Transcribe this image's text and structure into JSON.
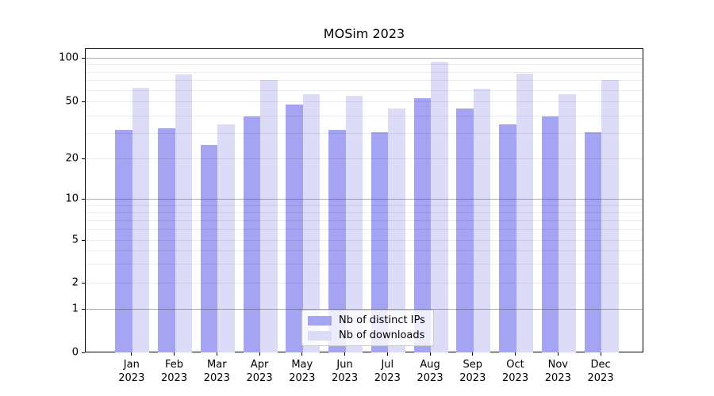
{
  "chart_data": {
    "type": "bar",
    "title": "MOSim 2023",
    "categories": [
      "Jan 2023",
      "Feb 2023",
      "Mar 2023",
      "Apr 2023",
      "May 2023",
      "Jun 2023",
      "Jul 2023",
      "Aug 2023",
      "Sep 2023",
      "Oct 2023",
      "Nov 2023",
      "Dec 2023"
    ],
    "series": [
      {
        "name": "Nb of distinct IPs",
        "color": "#a4a4f2",
        "values": [
          32,
          33,
          25,
          40,
          48,
          32,
          31,
          53,
          45,
          35,
          40,
          31
        ]
      },
      {
        "name": "Nb of downloads",
        "color": "#dcdcf8",
        "values": [
          63,
          78,
          35,
          71,
          57,
          55,
          45,
          95,
          62,
          79,
          57,
          71
        ]
      }
    ],
    "yscale": "symlog",
    "y_ticks": [
      0,
      1,
      2,
      5,
      10,
      20,
      50,
      100
    ],
    "y_minor_gridlines": [
      2,
      3,
      4,
      5,
      6,
      7,
      8,
      9,
      20,
      30,
      40,
      50,
      60,
      70,
      80,
      90
    ],
    "y_major_gridlines": [
      1,
      10,
      100
    ],
    "ylim": [
      0,
      110
    ],
    "xlabel": "",
    "ylabel": "",
    "grid": "horizontal major+minor",
    "legend_position": "lower center"
  }
}
